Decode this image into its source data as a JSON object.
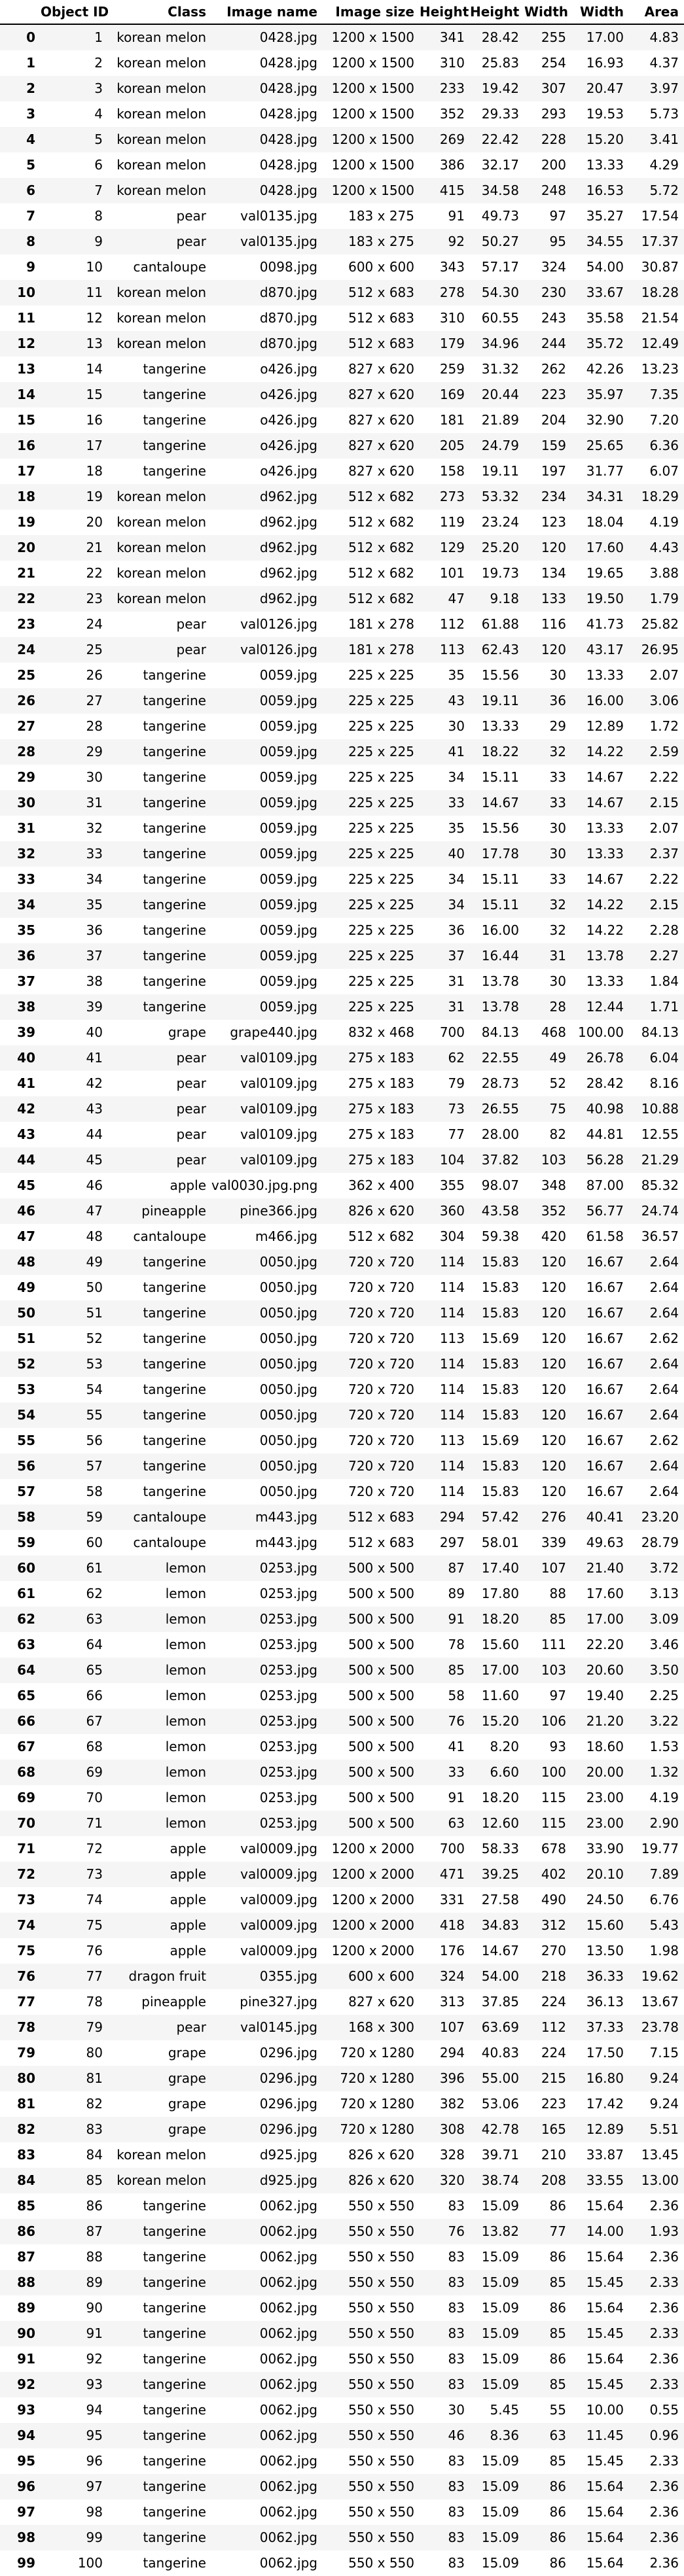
{
  "table": {
    "headers": [
      "",
      "Object ID",
      "Class",
      "Image name",
      "Image size",
      "Height",
      "Height",
      "Width",
      "Width",
      "Area"
    ],
    "rows": [
      [
        "0",
        "1",
        "korean melon",
        "0428.jpg",
        "1200 x 1500",
        "341",
        "28.42",
        "255",
        "17.00",
        "4.83"
      ],
      [
        "1",
        "2",
        "korean melon",
        "0428.jpg",
        "1200 x 1500",
        "310",
        "25.83",
        "254",
        "16.93",
        "4.37"
      ],
      [
        "2",
        "3",
        "korean melon",
        "0428.jpg",
        "1200 x 1500",
        "233",
        "19.42",
        "307",
        "20.47",
        "3.97"
      ],
      [
        "3",
        "4",
        "korean melon",
        "0428.jpg",
        "1200 x 1500",
        "352",
        "29.33",
        "293",
        "19.53",
        "5.73"
      ],
      [
        "4",
        "5",
        "korean melon",
        "0428.jpg",
        "1200 x 1500",
        "269",
        "22.42",
        "228",
        "15.20",
        "3.41"
      ],
      [
        "5",
        "6",
        "korean melon",
        "0428.jpg",
        "1200 x 1500",
        "386",
        "32.17",
        "200",
        "13.33",
        "4.29"
      ],
      [
        "6",
        "7",
        "korean melon",
        "0428.jpg",
        "1200 x 1500",
        "415",
        "34.58",
        "248",
        "16.53",
        "5.72"
      ],
      [
        "7",
        "8",
        "pear",
        "val0135.jpg",
        "183 x 275",
        "91",
        "49.73",
        "97",
        "35.27",
        "17.54"
      ],
      [
        "8",
        "9",
        "pear",
        "val0135.jpg",
        "183 x 275",
        "92",
        "50.27",
        "95",
        "34.55",
        "17.37"
      ],
      [
        "9",
        "10",
        "cantaloupe",
        "0098.jpg",
        "600 x 600",
        "343",
        "57.17",
        "324",
        "54.00",
        "30.87"
      ],
      [
        "10",
        "11",
        "korean melon",
        "d870.jpg",
        "512 x 683",
        "278",
        "54.30",
        "230",
        "33.67",
        "18.28"
      ],
      [
        "11",
        "12",
        "korean melon",
        "d870.jpg",
        "512 x 683",
        "310",
        "60.55",
        "243",
        "35.58",
        "21.54"
      ],
      [
        "12",
        "13",
        "korean melon",
        "d870.jpg",
        "512 x 683",
        "179",
        "34.96",
        "244",
        "35.72",
        "12.49"
      ],
      [
        "13",
        "14",
        "tangerine",
        "o426.jpg",
        "827 x 620",
        "259",
        "31.32",
        "262",
        "42.26",
        "13.23"
      ],
      [
        "14",
        "15",
        "tangerine",
        "o426.jpg",
        "827 x 620",
        "169",
        "20.44",
        "223",
        "35.97",
        "7.35"
      ],
      [
        "15",
        "16",
        "tangerine",
        "o426.jpg",
        "827 x 620",
        "181",
        "21.89",
        "204",
        "32.90",
        "7.20"
      ],
      [
        "16",
        "17",
        "tangerine",
        "o426.jpg",
        "827 x 620",
        "205",
        "24.79",
        "159",
        "25.65",
        "6.36"
      ],
      [
        "17",
        "18",
        "tangerine",
        "o426.jpg",
        "827 x 620",
        "158",
        "19.11",
        "197",
        "31.77",
        "6.07"
      ],
      [
        "18",
        "19",
        "korean melon",
        "d962.jpg",
        "512 x 682",
        "273",
        "53.32",
        "234",
        "34.31",
        "18.29"
      ],
      [
        "19",
        "20",
        "korean melon",
        "d962.jpg",
        "512 x 682",
        "119",
        "23.24",
        "123",
        "18.04",
        "4.19"
      ],
      [
        "20",
        "21",
        "korean melon",
        "d962.jpg",
        "512 x 682",
        "129",
        "25.20",
        "120",
        "17.60",
        "4.43"
      ],
      [
        "21",
        "22",
        "korean melon",
        "d962.jpg",
        "512 x 682",
        "101",
        "19.73",
        "134",
        "19.65",
        "3.88"
      ],
      [
        "22",
        "23",
        "korean melon",
        "d962.jpg",
        "512 x 682",
        "47",
        "9.18",
        "133",
        "19.50",
        "1.79"
      ],
      [
        "23",
        "24",
        "pear",
        "val0126.jpg",
        "181 x 278",
        "112",
        "61.88",
        "116",
        "41.73",
        "25.82"
      ],
      [
        "24",
        "25",
        "pear",
        "val0126.jpg",
        "181 x 278",
        "113",
        "62.43",
        "120",
        "43.17",
        "26.95"
      ],
      [
        "25",
        "26",
        "tangerine",
        "0059.jpg",
        "225 x 225",
        "35",
        "15.56",
        "30",
        "13.33",
        "2.07"
      ],
      [
        "26",
        "27",
        "tangerine",
        "0059.jpg",
        "225 x 225",
        "43",
        "19.11",
        "36",
        "16.00",
        "3.06"
      ],
      [
        "27",
        "28",
        "tangerine",
        "0059.jpg",
        "225 x 225",
        "30",
        "13.33",
        "29",
        "12.89",
        "1.72"
      ],
      [
        "28",
        "29",
        "tangerine",
        "0059.jpg",
        "225 x 225",
        "41",
        "18.22",
        "32",
        "14.22",
        "2.59"
      ],
      [
        "29",
        "30",
        "tangerine",
        "0059.jpg",
        "225 x 225",
        "34",
        "15.11",
        "33",
        "14.67",
        "2.22"
      ],
      [
        "30",
        "31",
        "tangerine",
        "0059.jpg",
        "225 x 225",
        "33",
        "14.67",
        "33",
        "14.67",
        "2.15"
      ],
      [
        "31",
        "32",
        "tangerine",
        "0059.jpg",
        "225 x 225",
        "35",
        "15.56",
        "30",
        "13.33",
        "2.07"
      ],
      [
        "32",
        "33",
        "tangerine",
        "0059.jpg",
        "225 x 225",
        "40",
        "17.78",
        "30",
        "13.33",
        "2.37"
      ],
      [
        "33",
        "34",
        "tangerine",
        "0059.jpg",
        "225 x 225",
        "34",
        "15.11",
        "33",
        "14.67",
        "2.22"
      ],
      [
        "34",
        "35",
        "tangerine",
        "0059.jpg",
        "225 x 225",
        "34",
        "15.11",
        "32",
        "14.22",
        "2.15"
      ],
      [
        "35",
        "36",
        "tangerine",
        "0059.jpg",
        "225 x 225",
        "36",
        "16.00",
        "32",
        "14.22",
        "2.28"
      ],
      [
        "36",
        "37",
        "tangerine",
        "0059.jpg",
        "225 x 225",
        "37",
        "16.44",
        "31",
        "13.78",
        "2.27"
      ],
      [
        "37",
        "38",
        "tangerine",
        "0059.jpg",
        "225 x 225",
        "31",
        "13.78",
        "30",
        "13.33",
        "1.84"
      ],
      [
        "38",
        "39",
        "tangerine",
        "0059.jpg",
        "225 x 225",
        "31",
        "13.78",
        "28",
        "12.44",
        "1.71"
      ],
      [
        "39",
        "40",
        "grape",
        "grape440.jpg",
        "832 x 468",
        "700",
        "84.13",
        "468",
        "100.00",
        "84.13"
      ],
      [
        "40",
        "41",
        "pear",
        "val0109.jpg",
        "275 x 183",
        "62",
        "22.55",
        "49",
        "26.78",
        "6.04"
      ],
      [
        "41",
        "42",
        "pear",
        "val0109.jpg",
        "275 x 183",
        "79",
        "28.73",
        "52",
        "28.42",
        "8.16"
      ],
      [
        "42",
        "43",
        "pear",
        "val0109.jpg",
        "275 x 183",
        "73",
        "26.55",
        "75",
        "40.98",
        "10.88"
      ],
      [
        "43",
        "44",
        "pear",
        "val0109.jpg",
        "275 x 183",
        "77",
        "28.00",
        "82",
        "44.81",
        "12.55"
      ],
      [
        "44",
        "45",
        "pear",
        "val0109.jpg",
        "275 x 183",
        "104",
        "37.82",
        "103",
        "56.28",
        "21.29"
      ],
      [
        "45",
        "46",
        "apple",
        "val0030.jpg.png",
        "362 x 400",
        "355",
        "98.07",
        "348",
        "87.00",
        "85.32"
      ],
      [
        "46",
        "47",
        "pineapple",
        "pine366.jpg",
        "826 x 620",
        "360",
        "43.58",
        "352",
        "56.77",
        "24.74"
      ],
      [
        "47",
        "48",
        "cantaloupe",
        "m466.jpg",
        "512 x 682",
        "304",
        "59.38",
        "420",
        "61.58",
        "36.57"
      ],
      [
        "48",
        "49",
        "tangerine",
        "0050.jpg",
        "720 x 720",
        "114",
        "15.83",
        "120",
        "16.67",
        "2.64"
      ],
      [
        "49",
        "50",
        "tangerine",
        "0050.jpg",
        "720 x 720",
        "114",
        "15.83",
        "120",
        "16.67",
        "2.64"
      ],
      [
        "50",
        "51",
        "tangerine",
        "0050.jpg",
        "720 x 720",
        "114",
        "15.83",
        "120",
        "16.67",
        "2.64"
      ],
      [
        "51",
        "52",
        "tangerine",
        "0050.jpg",
        "720 x 720",
        "113",
        "15.69",
        "120",
        "16.67",
        "2.62"
      ],
      [
        "52",
        "53",
        "tangerine",
        "0050.jpg",
        "720 x 720",
        "114",
        "15.83",
        "120",
        "16.67",
        "2.64"
      ],
      [
        "53",
        "54",
        "tangerine",
        "0050.jpg",
        "720 x 720",
        "114",
        "15.83",
        "120",
        "16.67",
        "2.64"
      ],
      [
        "54",
        "55",
        "tangerine",
        "0050.jpg",
        "720 x 720",
        "114",
        "15.83",
        "120",
        "16.67",
        "2.64"
      ],
      [
        "55",
        "56",
        "tangerine",
        "0050.jpg",
        "720 x 720",
        "113",
        "15.69",
        "120",
        "16.67",
        "2.62"
      ],
      [
        "56",
        "57",
        "tangerine",
        "0050.jpg",
        "720 x 720",
        "114",
        "15.83",
        "120",
        "16.67",
        "2.64"
      ],
      [
        "57",
        "58",
        "tangerine",
        "0050.jpg",
        "720 x 720",
        "114",
        "15.83",
        "120",
        "16.67",
        "2.64"
      ],
      [
        "58",
        "59",
        "cantaloupe",
        "m443.jpg",
        "512 x 683",
        "294",
        "57.42",
        "276",
        "40.41",
        "23.20"
      ],
      [
        "59",
        "60",
        "cantaloupe",
        "m443.jpg",
        "512 x 683",
        "297",
        "58.01",
        "339",
        "49.63",
        "28.79"
      ],
      [
        "60",
        "61",
        "lemon",
        "0253.jpg",
        "500 x 500",
        "87",
        "17.40",
        "107",
        "21.40",
        "3.72"
      ],
      [
        "61",
        "62",
        "lemon",
        "0253.jpg",
        "500 x 500",
        "89",
        "17.80",
        "88",
        "17.60",
        "3.13"
      ],
      [
        "62",
        "63",
        "lemon",
        "0253.jpg",
        "500 x 500",
        "91",
        "18.20",
        "85",
        "17.00",
        "3.09"
      ],
      [
        "63",
        "64",
        "lemon",
        "0253.jpg",
        "500 x 500",
        "78",
        "15.60",
        "111",
        "22.20",
        "3.46"
      ],
      [
        "64",
        "65",
        "lemon",
        "0253.jpg",
        "500 x 500",
        "85",
        "17.00",
        "103",
        "20.60",
        "3.50"
      ],
      [
        "65",
        "66",
        "lemon",
        "0253.jpg",
        "500 x 500",
        "58",
        "11.60",
        "97",
        "19.40",
        "2.25"
      ],
      [
        "66",
        "67",
        "lemon",
        "0253.jpg",
        "500 x 500",
        "76",
        "15.20",
        "106",
        "21.20",
        "3.22"
      ],
      [
        "67",
        "68",
        "lemon",
        "0253.jpg",
        "500 x 500",
        "41",
        "8.20",
        "93",
        "18.60",
        "1.53"
      ],
      [
        "68",
        "69",
        "lemon",
        "0253.jpg",
        "500 x 500",
        "33",
        "6.60",
        "100",
        "20.00",
        "1.32"
      ],
      [
        "69",
        "70",
        "lemon",
        "0253.jpg",
        "500 x 500",
        "91",
        "18.20",
        "115",
        "23.00",
        "4.19"
      ],
      [
        "70",
        "71",
        "lemon",
        "0253.jpg",
        "500 x 500",
        "63",
        "12.60",
        "115",
        "23.00",
        "2.90"
      ],
      [
        "71",
        "72",
        "apple",
        "val0009.jpg",
        "1200 x 2000",
        "700",
        "58.33",
        "678",
        "33.90",
        "19.77"
      ],
      [
        "72",
        "73",
        "apple",
        "val0009.jpg",
        "1200 x 2000",
        "471",
        "39.25",
        "402",
        "20.10",
        "7.89"
      ],
      [
        "73",
        "74",
        "apple",
        "val0009.jpg",
        "1200 x 2000",
        "331",
        "27.58",
        "490",
        "24.50",
        "6.76"
      ],
      [
        "74",
        "75",
        "apple",
        "val0009.jpg",
        "1200 x 2000",
        "418",
        "34.83",
        "312",
        "15.60",
        "5.43"
      ],
      [
        "75",
        "76",
        "apple",
        "val0009.jpg",
        "1200 x 2000",
        "176",
        "14.67",
        "270",
        "13.50",
        "1.98"
      ],
      [
        "76",
        "77",
        "dragon fruit",
        "0355.jpg",
        "600 x 600",
        "324",
        "54.00",
        "218",
        "36.33",
        "19.62"
      ],
      [
        "77",
        "78",
        "pineapple",
        "pine327.jpg",
        "827 x 620",
        "313",
        "37.85",
        "224",
        "36.13",
        "13.67"
      ],
      [
        "78",
        "79",
        "pear",
        "val0145.jpg",
        "168 x 300",
        "107",
        "63.69",
        "112",
        "37.33",
        "23.78"
      ],
      [
        "79",
        "80",
        "grape",
        "0296.jpg",
        "720 x 1280",
        "294",
        "40.83",
        "224",
        "17.50",
        "7.15"
      ],
      [
        "80",
        "81",
        "grape",
        "0296.jpg",
        "720 x 1280",
        "396",
        "55.00",
        "215",
        "16.80",
        "9.24"
      ],
      [
        "81",
        "82",
        "grape",
        "0296.jpg",
        "720 x 1280",
        "382",
        "53.06",
        "223",
        "17.42",
        "9.24"
      ],
      [
        "82",
        "83",
        "grape",
        "0296.jpg",
        "720 x 1280",
        "308",
        "42.78",
        "165",
        "12.89",
        "5.51"
      ],
      [
        "83",
        "84",
        "korean melon",
        "d925.jpg",
        "826 x 620",
        "328",
        "39.71",
        "210",
        "33.87",
        "13.45"
      ],
      [
        "84",
        "85",
        "korean melon",
        "d925.jpg",
        "826 x 620",
        "320",
        "38.74",
        "208",
        "33.55",
        "13.00"
      ],
      [
        "85",
        "86",
        "tangerine",
        "0062.jpg",
        "550 x 550",
        "83",
        "15.09",
        "86",
        "15.64",
        "2.36"
      ],
      [
        "86",
        "87",
        "tangerine",
        "0062.jpg",
        "550 x 550",
        "76",
        "13.82",
        "77",
        "14.00",
        "1.93"
      ],
      [
        "87",
        "88",
        "tangerine",
        "0062.jpg",
        "550 x 550",
        "83",
        "15.09",
        "86",
        "15.64",
        "2.36"
      ],
      [
        "88",
        "89",
        "tangerine",
        "0062.jpg",
        "550 x 550",
        "83",
        "15.09",
        "85",
        "15.45",
        "2.33"
      ],
      [
        "89",
        "90",
        "tangerine",
        "0062.jpg",
        "550 x 550",
        "83",
        "15.09",
        "86",
        "15.64",
        "2.36"
      ],
      [
        "90",
        "91",
        "tangerine",
        "0062.jpg",
        "550 x 550",
        "83",
        "15.09",
        "85",
        "15.45",
        "2.33"
      ],
      [
        "91",
        "92",
        "tangerine",
        "0062.jpg",
        "550 x 550",
        "83",
        "15.09",
        "86",
        "15.64",
        "2.36"
      ],
      [
        "92",
        "93",
        "tangerine",
        "0062.jpg",
        "550 x 550",
        "83",
        "15.09",
        "85",
        "15.45",
        "2.33"
      ],
      [
        "93",
        "94",
        "tangerine",
        "0062.jpg",
        "550 x 550",
        "30",
        "5.45",
        "55",
        "10.00",
        "0.55"
      ],
      [
        "94",
        "95",
        "tangerine",
        "0062.jpg",
        "550 x 550",
        "46",
        "8.36",
        "63",
        "11.45",
        "0.96"
      ],
      [
        "95",
        "96",
        "tangerine",
        "0062.jpg",
        "550 x 550",
        "83",
        "15.09",
        "85",
        "15.45",
        "2.33"
      ],
      [
        "96",
        "97",
        "tangerine",
        "0062.jpg",
        "550 x 550",
        "83",
        "15.09",
        "86",
        "15.64",
        "2.36"
      ],
      [
        "97",
        "98",
        "tangerine",
        "0062.jpg",
        "550 x 550",
        "83",
        "15.09",
        "86",
        "15.64",
        "2.36"
      ],
      [
        "98",
        "99",
        "tangerine",
        "0062.jpg",
        "550 x 550",
        "83",
        "15.09",
        "86",
        "15.64",
        "2.36"
      ],
      [
        "99",
        "100",
        "tangerine",
        "0062.jpg",
        "550 x 550",
        "83",
        "15.09",
        "86",
        "15.64",
        "2.36"
      ]
    ]
  }
}
